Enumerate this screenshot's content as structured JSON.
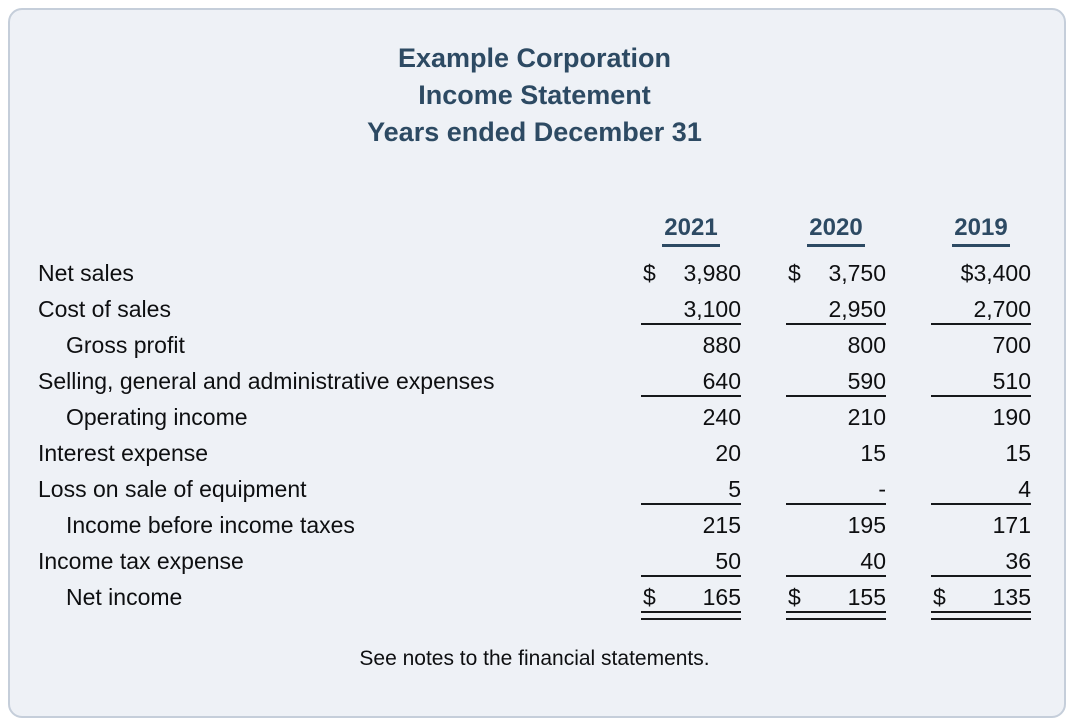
{
  "title": {
    "lines": [
      "Example Corporation",
      "Income Statement",
      "Years ended December 31"
    ]
  },
  "statement": {
    "year_headers": [
      "2021",
      "2020",
      "2019"
    ],
    "rows": [
      {
        "label": "Net sales",
        "indent": false,
        "underline": "none",
        "cells": [
          {
            "dollar": "$",
            "value": "3,980"
          },
          {
            "dollar": "$",
            "value": "3,750"
          },
          {
            "dollar": "$",
            "value": "3,400",
            "tight": true
          }
        ]
      },
      {
        "label": "Cost of sales",
        "indent": false,
        "underline": "single",
        "cells": [
          {
            "value": "3,100"
          },
          {
            "value": "2,950"
          },
          {
            "value": "2,700"
          }
        ]
      },
      {
        "label": "Gross profit",
        "indent": true,
        "underline": "none",
        "cells": [
          {
            "value": "880"
          },
          {
            "value": "800"
          },
          {
            "value": "700"
          }
        ]
      },
      {
        "label": "Selling, general and administrative expenses",
        "indent": false,
        "underline": "single",
        "cells": [
          {
            "value": "640"
          },
          {
            "value": "590"
          },
          {
            "value": "510"
          }
        ]
      },
      {
        "label": "Operating income",
        "indent": true,
        "underline": "none",
        "cells": [
          {
            "value": "240"
          },
          {
            "value": "210"
          },
          {
            "value": "190"
          }
        ]
      },
      {
        "label": "Interest expense",
        "indent": false,
        "underline": "none",
        "cells": [
          {
            "value": "20"
          },
          {
            "value": "15"
          },
          {
            "value": "15"
          }
        ]
      },
      {
        "label": "Loss on sale of equipment",
        "indent": false,
        "underline": "single",
        "cells": [
          {
            "value": "5"
          },
          {
            "value": "-"
          },
          {
            "value": "4"
          }
        ]
      },
      {
        "label": "Income before income taxes",
        "indent": true,
        "underline": "none",
        "cells": [
          {
            "value": "215"
          },
          {
            "value": "195"
          },
          {
            "value": "171"
          }
        ]
      },
      {
        "label": "Income tax expense",
        "indent": false,
        "underline": "single",
        "cells": [
          {
            "value": "50"
          },
          {
            "value": "40"
          },
          {
            "value": "36"
          }
        ]
      },
      {
        "label": "Net income",
        "indent": true,
        "underline": "double",
        "cells": [
          {
            "dollar": "$",
            "value": "165"
          },
          {
            "dollar": "$",
            "value": "155"
          },
          {
            "dollar": "$",
            "value": "135"
          }
        ]
      }
    ],
    "footnote": "See notes to the financial statements."
  },
  "colors": {
    "accent": "#2d4a63",
    "card_background": "#eef1f6",
    "card_border": "#c5ceda",
    "text": "#0e0f11",
    "rule_line": "#16181b"
  }
}
